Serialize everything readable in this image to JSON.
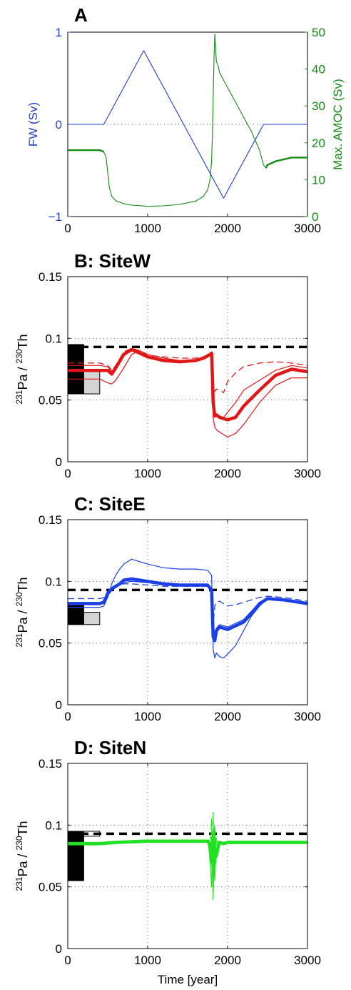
{
  "time_label": "Time [year]",
  "chart_data": [
    {
      "type": "line",
      "title": "A",
      "xlim": [
        0,
        3000
      ],
      "ylim_left": [
        -1,
        1
      ],
      "ylim_right": [
        0,
        50
      ],
      "ylabel_left": "FW (Sv)",
      "ylabel_right": "Max. AMOC (Sv)",
      "x_ticks": [
        "0",
        "1000",
        "2000",
        "3000"
      ],
      "left_ticks": [
        {
          "v": -1,
          "t": "−1"
        },
        {
          "v": 0,
          "t": "0"
        },
        {
          "v": 1,
          "t": "1"
        }
      ],
      "right_ticks": [
        "0",
        "10",
        "20",
        "30",
        "40",
        "50"
      ],
      "colors": {
        "left": "#1f3fd1",
        "right": "#138a13"
      },
      "series": [
        {
          "axis": "left",
          "x": [
            0,
            450,
            950,
            1950,
            2450,
            3000
          ],
          "y": [
            0,
            0,
            0.8,
            -0.8,
            0,
            0
          ]
        },
        {
          "axis": "right",
          "x": [
            0,
            400,
            450,
            480,
            500,
            520,
            550,
            600,
            700,
            800,
            1000,
            1200,
            1400,
            1600,
            1700,
            1750,
            1780,
            1800,
            1810,
            1820,
            1830,
            1840,
            1850,
            1860,
            1880,
            1900,
            1950,
            2000,
            2100,
            2200,
            2300,
            2400,
            2450,
            2480,
            2500,
            2600,
            2800,
            3000
          ],
          "y": [
            18,
            18,
            17.6,
            16,
            12,
            8,
            5.5,
            4.3,
            3.5,
            3.1,
            2.8,
            2.9,
            3.3,
            4.2,
            5.5,
            7.2,
            10,
            15,
            22,
            32,
            43,
            49.5,
            46,
            42,
            41,
            39,
            37,
            35,
            31,
            27,
            23,
            18,
            14,
            13.2,
            14,
            15,
            16,
            16
          ]
        }
      ]
    },
    {
      "type": "line",
      "title": "B: SiteW",
      "xlim": [
        0,
        3000
      ],
      "ylim": [
        0,
        0.15
      ],
      "ylabel": "231Pa / 230Th",
      "x_ticks": [
        "0",
        "1000",
        "2000",
        "3000"
      ],
      "y_ticks": [
        "0",
        "0.05",
        "0.1",
        "0.15"
      ],
      "reference_value": 0.093,
      "color": "#e11717",
      "bars": [
        {
          "x0": 0,
          "x1": 200,
          "y0": 0.055,
          "y1": 0.095,
          "fill": "#000000"
        },
        {
          "x0": 200,
          "x1": 400,
          "y0": 0.055,
          "y1": 0.074,
          "fill": "#d4d4d4"
        }
      ],
      "x": [
        0,
        400,
        500,
        550,
        600,
        700,
        800,
        900,
        1000,
        1200,
        1400,
        1600,
        1700,
        1780,
        1800,
        1810,
        1820,
        1840,
        1860,
        1900,
        1950,
        2000,
        2100,
        2200,
        2400,
        2600,
        2800,
        3000
      ],
      "series": [
        {
          "style": "thick",
          "y": [
            0.074,
            0.074,
            0.074,
            0.071,
            0.076,
            0.087,
            0.091,
            0.088,
            0.085,
            0.082,
            0.081,
            0.082,
            0.084,
            0.087,
            0.088,
            0.07,
            0.048,
            0.037,
            0.038,
            0.036,
            0.035,
            0.034,
            0.036,
            0.045,
            0.058,
            0.07,
            0.075,
            0.073
          ]
        },
        {
          "style": "dashed",
          "y": [
            0.08,
            0.08,
            0.078,
            0.074,
            0.078,
            0.089,
            0.092,
            0.09,
            0.086,
            0.085,
            0.084,
            0.084,
            0.085,
            0.088,
            0.089,
            0.075,
            0.058,
            0.057,
            0.059,
            0.058,
            0.056,
            0.065,
            0.072,
            0.077,
            0.08,
            0.081,
            0.08,
            0.078
          ]
        },
        {
          "style": "thin",
          "y": [
            0.067,
            0.067,
            0.064,
            0.063,
            0.066,
            0.076,
            0.087,
            0.09,
            0.087,
            0.084,
            0.082,
            0.082,
            0.084,
            0.086,
            0.087,
            0.064,
            0.035,
            0.028,
            0.026,
            0.024,
            0.022,
            0.02,
            0.023,
            0.03,
            0.048,
            0.062,
            0.068,
            0.068
          ]
        },
        {
          "style": "thin",
          "y": [
            0.078,
            0.078,
            0.077,
            0.073,
            0.078,
            0.088,
            0.091,
            0.089,
            0.085,
            0.083,
            0.081,
            0.082,
            0.083,
            0.086,
            0.087,
            0.07,
            0.045,
            0.038,
            0.038,
            0.037,
            0.036,
            0.04,
            0.048,
            0.058,
            0.066,
            0.074,
            0.078,
            0.076
          ]
        }
      ]
    },
    {
      "type": "line",
      "title": "C: SiteE",
      "xlim": [
        0,
        3000
      ],
      "ylim": [
        0,
        0.15
      ],
      "ylabel": "231Pa / 230Th",
      "x_ticks": [
        "0",
        "1000",
        "2000",
        "3000"
      ],
      "y_ticks": [
        "0",
        "0.05",
        "0.1",
        "0.15"
      ],
      "reference_value": 0.093,
      "color": "#1a3fe6",
      "bars": [
        {
          "x0": 0,
          "x1": 200,
          "y0": 0.065,
          "y1": 0.083,
          "fill": "#000000"
        },
        {
          "x0": 200,
          "x1": 400,
          "y0": 0.065,
          "y1": 0.075,
          "fill": "#d4d4d4"
        }
      ],
      "x": [
        0,
        400,
        450,
        500,
        550,
        600,
        650,
        700,
        800,
        1000,
        1200,
        1400,
        1600,
        1750,
        1800,
        1820,
        1840,
        1860,
        1900,
        1950,
        2000,
        2100,
        2200,
        2300,
        2400,
        2500,
        2700,
        3000
      ],
      "series": [
        {
          "style": "thick",
          "y": [
            0.082,
            0.082,
            0.083,
            0.09,
            0.094,
            0.096,
            0.098,
            0.101,
            0.102,
            0.1,
            0.098,
            0.097,
            0.097,
            0.097,
            0.093,
            0.055,
            0.052,
            0.06,
            0.063,
            0.062,
            0.061,
            0.064,
            0.067,
            0.074,
            0.082,
            0.086,
            0.085,
            0.082
          ]
        },
        {
          "style": "dashed",
          "y": [
            0.086,
            0.086,
            0.087,
            0.092,
            0.095,
            0.096,
            0.097,
            0.098,
            0.098,
            0.097,
            0.096,
            0.096,
            0.096,
            0.096,
            0.092,
            0.065,
            0.08,
            0.083,
            0.084,
            0.082,
            0.08,
            0.081,
            0.083,
            0.085,
            0.087,
            0.088,
            0.087,
            0.084
          ]
        },
        {
          "style": "thin",
          "y": [
            0.079,
            0.079,
            0.08,
            0.087,
            0.098,
            0.105,
            0.11,
            0.114,
            0.118,
            0.114,
            0.111,
            0.11,
            0.11,
            0.109,
            0.105,
            0.045,
            0.038,
            0.042,
            0.039,
            0.038,
            0.041,
            0.048,
            0.06,
            0.072,
            0.08,
            0.086,
            0.085,
            0.082
          ]
        },
        {
          "style": "thin",
          "y": [
            0.082,
            0.082,
            0.083,
            0.089,
            0.093,
            0.095,
            0.097,
            0.099,
            0.1,
            0.099,
            0.097,
            0.097,
            0.097,
            0.097,
            0.093,
            0.06,
            0.055,
            0.062,
            0.065,
            0.064,
            0.063,
            0.066,
            0.069,
            0.076,
            0.083,
            0.086,
            0.085,
            0.082
          ]
        }
      ]
    },
    {
      "type": "line",
      "title": "D: SiteN",
      "xlim": [
        0,
        3000
      ],
      "ylim": [
        0,
        0.15
      ],
      "ylabel": "231Pa / 230Th",
      "xlabel": "Time [year]",
      "x_ticks": [
        "0",
        "1000",
        "2000",
        "3000"
      ],
      "y_ticks": [
        "0",
        "0.05",
        "0.1",
        "0.15"
      ],
      "reference_value": 0.093,
      "color": "#22e022",
      "bars": [
        {
          "x0": 0,
          "x1": 200,
          "y0": 0.055,
          "y1": 0.095,
          "fill": "#000000"
        },
        {
          "x0": 200,
          "x1": 400,
          "y0": 0.091,
          "y1": 0.095,
          "fill": "#ffffff"
        }
      ],
      "x": [
        0,
        400,
        600,
        1000,
        1400,
        1700,
        1760,
        1780,
        1800,
        1810,
        1820,
        1830,
        1840,
        1850,
        1860,
        1880,
        1900,
        1950,
        2000,
        2500,
        3000
      ],
      "series": [
        {
          "style": "thick",
          "y": [
            0.085,
            0.085,
            0.086,
            0.087,
            0.087,
            0.087,
            0.087,
            0.082,
            0.07,
            0.09,
            0.06,
            0.095,
            0.07,
            0.08,
            0.075,
            0.082,
            0.086,
            0.085,
            0.086,
            0.086,
            0.086
          ]
        },
        {
          "style": "dashed",
          "y": [
            0.085,
            0.085,
            0.086,
            0.087,
            0.087,
            0.087,
            0.087,
            0.08,
            0.105,
            0.065,
            0.11,
            0.075,
            0.1,
            0.08,
            0.09,
            0.083,
            0.086,
            0.085,
            0.086,
            0.086,
            0.086
          ]
        },
        {
          "style": "thin",
          "y": [
            0.084,
            0.084,
            0.085,
            0.086,
            0.086,
            0.086,
            0.086,
            0.07,
            0.05,
            0.085,
            0.04,
            0.07,
            0.055,
            0.072,
            0.078,
            0.081,
            0.085,
            0.084,
            0.085,
            0.085,
            0.085
          ]
        },
        {
          "style": "thin",
          "y": [
            0.086,
            0.086,
            0.087,
            0.088,
            0.088,
            0.088,
            0.088,
            0.084,
            0.078,
            0.092,
            0.072,
            0.098,
            0.08,
            0.086,
            0.084,
            0.085,
            0.087,
            0.086,
            0.087,
            0.087,
            0.087
          ]
        }
      ]
    }
  ]
}
